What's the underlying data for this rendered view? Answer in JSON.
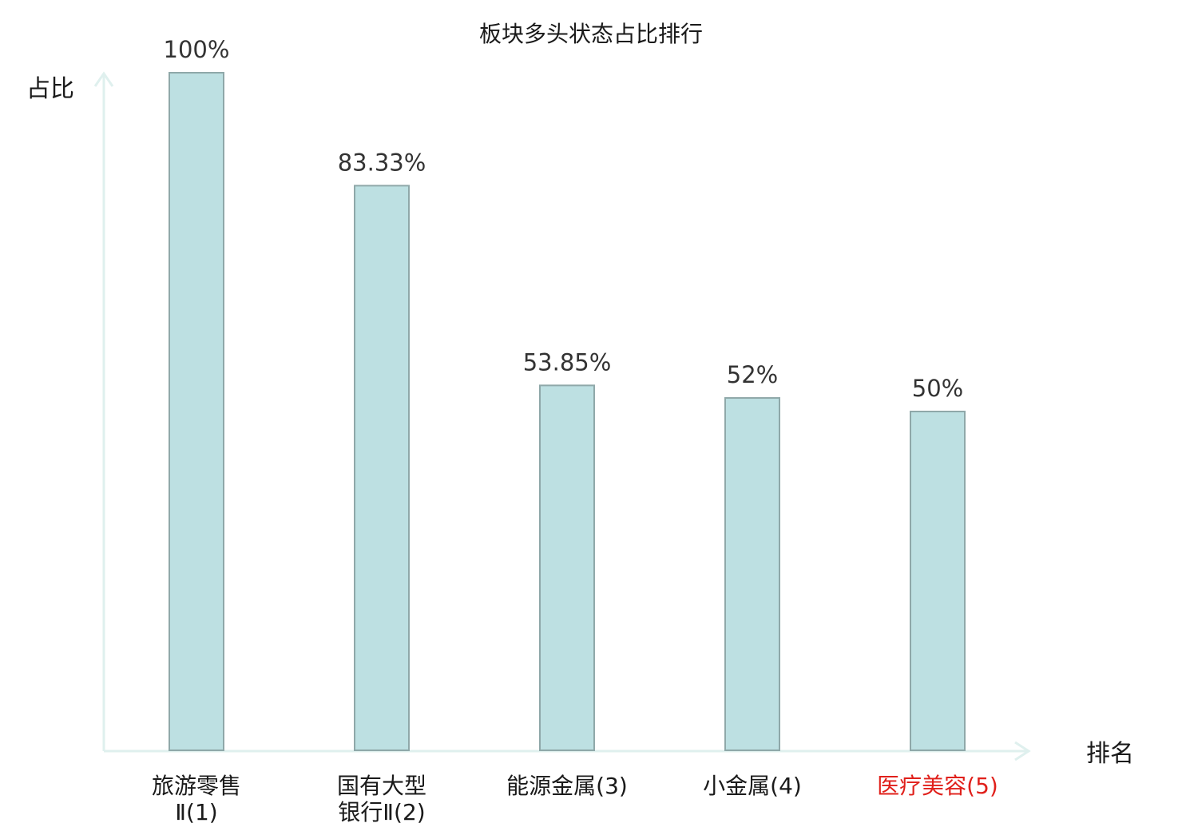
{
  "chart_data": {
    "type": "bar",
    "title": "板块多头状态占比排行",
    "ylabel": "占比",
    "xlabel": "排名",
    "ylim": [
      0,
      100
    ],
    "grid": false,
    "categories": [
      {
        "lines": [
          "旅游零售",
          "Ⅱ(1)"
        ],
        "highlight": false
      },
      {
        "lines": [
          "国有大型",
          "银行Ⅱ(2)"
        ],
        "highlight": false
      },
      {
        "lines": [
          "能源金属(3)"
        ],
        "highlight": false
      },
      {
        "lines": [
          "小金属(4)"
        ],
        "highlight": false
      },
      {
        "lines": [
          "医疗美容(5)"
        ],
        "highlight": true
      }
    ],
    "values": [
      100,
      83.33,
      53.85,
      52,
      50
    ],
    "value_labels": [
      "100%",
      "83.33%",
      "53.85%",
      "52%",
      "50%"
    ],
    "colors": {
      "bar_fill": "#bde0e2",
      "bar_stroke": "#8fa8a9",
      "axis": "#dff0ee",
      "highlight": "#e0201b",
      "text": "#1a1a1a"
    }
  }
}
